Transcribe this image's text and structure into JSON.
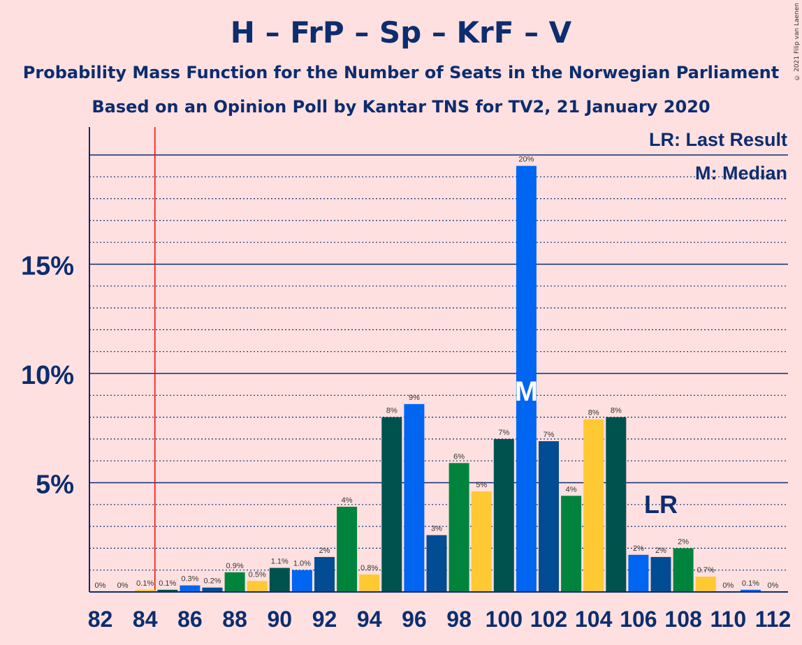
{
  "header": {
    "title": "H – FrP – Sp – KrF – V",
    "subtitle1": "Probability Mass Function for the Number of Seats in the Norwegian Parliament",
    "subtitle2": "Based on an Opinion Poll by Kantar TNS for TV2, 21 January 2020",
    "copyright": "© 2021 Filip van Laenen"
  },
  "legend": {
    "lr": "LR: Last Result",
    "m": "M: Median"
  },
  "markers": {
    "lr_label": "LR",
    "median_label": "M"
  },
  "colors": {
    "background": "#ffe0e0",
    "axis": "#0c2d6e",
    "last_result_line": "#ff0000",
    "party_colors": [
      "#0065f1",
      "#024c93",
      "#00843d",
      "#fec933",
      "#00524e"
    ]
  },
  "chart_data": {
    "type": "bar",
    "x": [
      82,
      83,
      84,
      85,
      86,
      87,
      88,
      89,
      90,
      91,
      92,
      93,
      94,
      95,
      96,
      97,
      98,
      99,
      100,
      101,
      102,
      103,
      104,
      105,
      106,
      107,
      108,
      109,
      110,
      111,
      112
    ],
    "values": [
      0,
      0,
      0.1,
      0.1,
      0.3,
      0.2,
      0.9,
      0.5,
      1.1,
      1.0,
      1.6,
      3.9,
      0.8,
      8.0,
      8.6,
      2.6,
      5.9,
      4.6,
      7.0,
      19.5,
      6.9,
      4.4,
      7.9,
      8.0,
      1.7,
      1.6,
      2.0,
      0.7,
      0,
      0.1,
      0
    ],
    "labels": [
      "0%",
      "0%",
      "0.1%",
      "0.1%",
      "0.3%",
      "0.2%",
      "0.9%",
      "0.5%",
      "1.1%",
      "1.0%",
      "2%",
      "4%",
      "0.8%",
      "8%",
      "9%",
      "3%",
      "6%",
      "5%",
      "7%",
      "20%",
      "7%",
      "4%",
      "8%",
      "8%",
      "2%",
      "2%",
      "2%",
      "0.7%",
      "0%",
      "0.1%",
      "0%"
    ],
    "x_ticks": [
      82,
      84,
      86,
      88,
      90,
      92,
      94,
      96,
      98,
      100,
      102,
      104,
      106,
      108,
      110,
      112
    ],
    "y_ticks": [
      5,
      10,
      15
    ],
    "y_tick_labels": [
      "5%",
      "10%",
      "15%"
    ],
    "ylim": [
      0,
      21
    ],
    "last_result_seat": 85,
    "median_seat": 101,
    "lr_label_seat": 107
  }
}
